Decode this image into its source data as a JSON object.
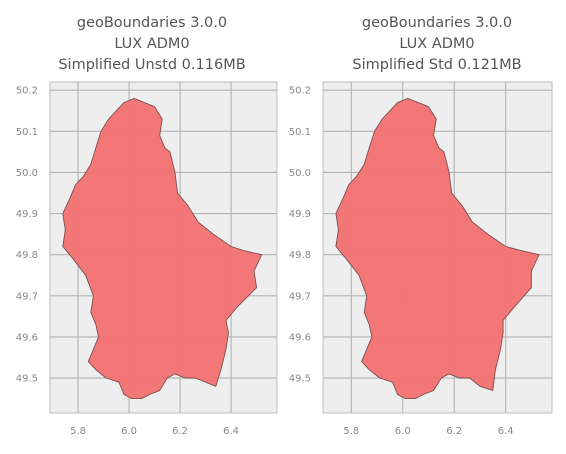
{
  "colors": {
    "plot_background": "#eeeeee",
    "grid": "#b2b2b2",
    "frame": "#bcbcbc",
    "fill": "#f47373",
    "edge": "#7a4f4f",
    "text": "#555555",
    "tick_text": "#888888"
  },
  "chart_data": [
    {
      "type": "map",
      "title_lines": [
        "geoBoundaries 3.0.0",
        "LUX ADM0",
        "Simplified Unstd 0.116MB"
      ],
      "xlim": [
        5.69,
        6.58
      ],
      "ylim": [
        49.415,
        50.22
      ],
      "xticks": [
        "5.8",
        "6.0",
        "6.2",
        "6.4"
      ],
      "xtick_values": [
        5.8,
        6.0,
        6.2,
        6.4
      ],
      "yticks": [
        "50.2",
        "50.1",
        "50.0",
        "49.9",
        "49.8",
        "49.7",
        "49.6",
        "49.5"
      ],
      "ytick_values": [
        50.2,
        50.1,
        50.0,
        49.9,
        49.8,
        49.7,
        49.6,
        49.5
      ],
      "grid": true,
      "boundary": [
        [
          6.02,
          50.18
        ],
        [
          6.06,
          50.17
        ],
        [
          6.1,
          50.16
        ],
        [
          6.13,
          50.13
        ],
        [
          6.12,
          50.09
        ],
        [
          6.14,
          50.06
        ],
        [
          6.16,
          50.05
        ],
        [
          6.18,
          50.0
        ],
        [
          6.19,
          49.95
        ],
        [
          6.23,
          49.92
        ],
        [
          6.27,
          49.88
        ],
        [
          6.33,
          49.85
        ],
        [
          6.4,
          49.82
        ],
        [
          6.45,
          49.81
        ],
        [
          6.52,
          49.8
        ],
        [
          6.49,
          49.76
        ],
        [
          6.5,
          49.72
        ],
        [
          6.42,
          49.67
        ],
        [
          6.38,
          49.64
        ],
        [
          6.39,
          49.61
        ],
        [
          6.38,
          49.57
        ],
        [
          6.36,
          49.52
        ],
        [
          6.34,
          49.48
        ],
        [
          6.3,
          49.49
        ],
        [
          6.26,
          49.5
        ],
        [
          6.22,
          49.5
        ],
        [
          6.18,
          49.51
        ],
        [
          6.15,
          49.5
        ],
        [
          6.12,
          49.47
        ],
        [
          6.08,
          49.46
        ],
        [
          6.05,
          49.45
        ],
        [
          6.01,
          49.45
        ],
        [
          5.98,
          49.46
        ],
        [
          5.96,
          49.49
        ],
        [
          5.91,
          49.5
        ],
        [
          5.87,
          49.52
        ],
        [
          5.84,
          49.54
        ],
        [
          5.86,
          49.57
        ],
        [
          5.88,
          49.6
        ],
        [
          5.87,
          49.63
        ],
        [
          5.85,
          49.66
        ],
        [
          5.86,
          49.7
        ],
        [
          5.83,
          49.75
        ],
        [
          5.78,
          49.79
        ],
        [
          5.74,
          49.82
        ],
        [
          5.75,
          49.86
        ],
        [
          5.74,
          49.9
        ],
        [
          5.77,
          49.94
        ],
        [
          5.79,
          49.97
        ],
        [
          5.82,
          49.99
        ],
        [
          5.85,
          50.02
        ],
        [
          5.87,
          50.06
        ],
        [
          5.89,
          50.1
        ],
        [
          5.92,
          50.13
        ],
        [
          5.95,
          50.15
        ],
        [
          5.98,
          50.17
        ],
        [
          6.02,
          50.18
        ]
      ]
    },
    {
      "type": "map",
      "title_lines": [
        "geoBoundaries 3.0.0",
        "LUX ADM0",
        "Simplified Std 0.121MB"
      ],
      "xlim": [
        5.69,
        6.58
      ],
      "ylim": [
        49.415,
        50.22
      ],
      "xticks": [
        "5.8",
        "6.0",
        "6.2",
        "6.4"
      ],
      "xtick_values": [
        5.8,
        6.0,
        6.2,
        6.4
      ],
      "yticks": [
        "50.2",
        "50.1",
        "50.0",
        "49.9",
        "49.8",
        "49.7",
        "49.6",
        "49.5"
      ],
      "ytick_values": [
        50.2,
        50.1,
        50.0,
        49.9,
        49.8,
        49.7,
        49.6,
        49.5
      ],
      "grid": true,
      "boundary": [
        [
          6.02,
          50.18
        ],
        [
          6.06,
          50.17
        ],
        [
          6.1,
          50.16
        ],
        [
          6.13,
          50.13
        ],
        [
          6.12,
          50.09
        ],
        [
          6.14,
          50.06
        ],
        [
          6.16,
          50.05
        ],
        [
          6.18,
          50.0
        ],
        [
          6.19,
          49.95
        ],
        [
          6.23,
          49.92
        ],
        [
          6.27,
          49.88
        ],
        [
          6.33,
          49.85
        ],
        [
          6.4,
          49.82
        ],
        [
          6.46,
          49.81
        ],
        [
          6.53,
          49.8
        ],
        [
          6.5,
          49.76
        ],
        [
          6.5,
          49.72
        ],
        [
          6.43,
          49.67
        ],
        [
          6.39,
          49.64
        ],
        [
          6.39,
          49.61
        ],
        [
          6.38,
          49.57
        ],
        [
          6.36,
          49.52
        ],
        [
          6.35,
          49.47
        ],
        [
          6.3,
          49.48
        ],
        [
          6.26,
          49.5
        ],
        [
          6.22,
          49.5
        ],
        [
          6.18,
          49.51
        ],
        [
          6.15,
          49.5
        ],
        [
          6.12,
          49.47
        ],
        [
          6.08,
          49.46
        ],
        [
          6.05,
          49.45
        ],
        [
          6.01,
          49.45
        ],
        [
          5.98,
          49.46
        ],
        [
          5.96,
          49.49
        ],
        [
          5.91,
          49.5
        ],
        [
          5.87,
          49.52
        ],
        [
          5.84,
          49.54
        ],
        [
          5.86,
          49.57
        ],
        [
          5.88,
          49.6
        ],
        [
          5.87,
          49.63
        ],
        [
          5.85,
          49.66
        ],
        [
          5.86,
          49.7
        ],
        [
          5.83,
          49.75
        ],
        [
          5.78,
          49.79
        ],
        [
          5.74,
          49.82
        ],
        [
          5.75,
          49.86
        ],
        [
          5.74,
          49.9
        ],
        [
          5.77,
          49.94
        ],
        [
          5.79,
          49.97
        ],
        [
          5.82,
          49.99
        ],
        [
          5.85,
          50.02
        ],
        [
          5.87,
          50.06
        ],
        [
          5.89,
          50.1
        ],
        [
          5.92,
          50.13
        ],
        [
          5.95,
          50.15
        ],
        [
          5.98,
          50.17
        ],
        [
          6.02,
          50.18
        ]
      ]
    }
  ]
}
